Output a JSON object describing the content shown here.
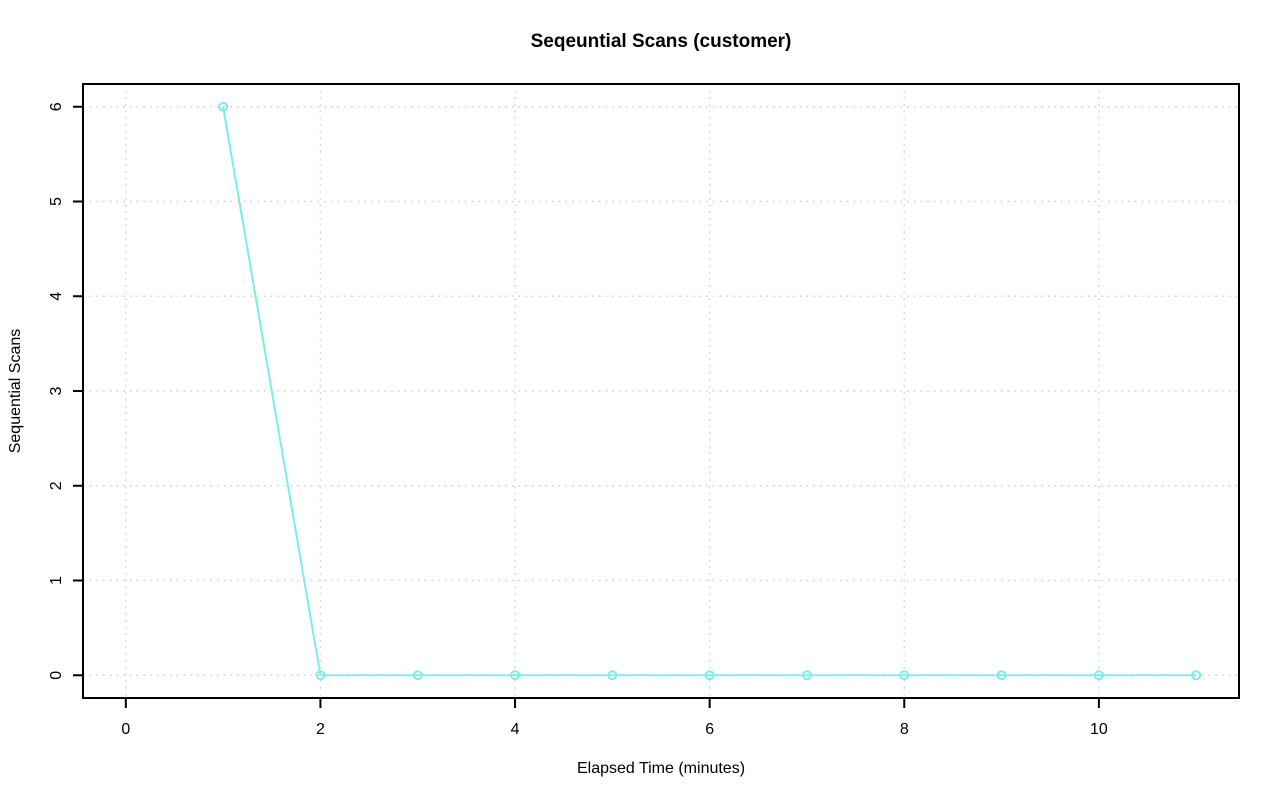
{
  "chart": {
    "title": "Seqeuntial Scans (customer)",
    "xlabel": "Elapsed Time (minutes)",
    "ylabel": "Sequential Scans"
  },
  "chart_data": {
    "type": "line",
    "title": "Seqeuntial Scans (customer)",
    "xlabel": "Elapsed Time (minutes)",
    "ylabel": "Sequential Scans",
    "x": [
      1,
      2,
      3,
      4,
      5,
      6,
      7,
      8,
      9,
      10,
      11
    ],
    "y": [
      6,
      0,
      0,
      0,
      0,
      0,
      0,
      0,
      0,
      0,
      0
    ],
    "xticks": [
      0,
      2,
      4,
      6,
      8,
      10
    ],
    "yticks": [
      0,
      1,
      2,
      3,
      4,
      5,
      6
    ],
    "xlim": [
      -0.44,
      11.44
    ],
    "ylim": [
      -0.24,
      6.24
    ],
    "grid": true,
    "legend": null,
    "marker": "open-circle",
    "line_color": "#7AEDED",
    "grid_color": "#D2D2D2",
    "axis_color": "#000000",
    "text_color": "#000000",
    "background": "#FFFFFF"
  }
}
